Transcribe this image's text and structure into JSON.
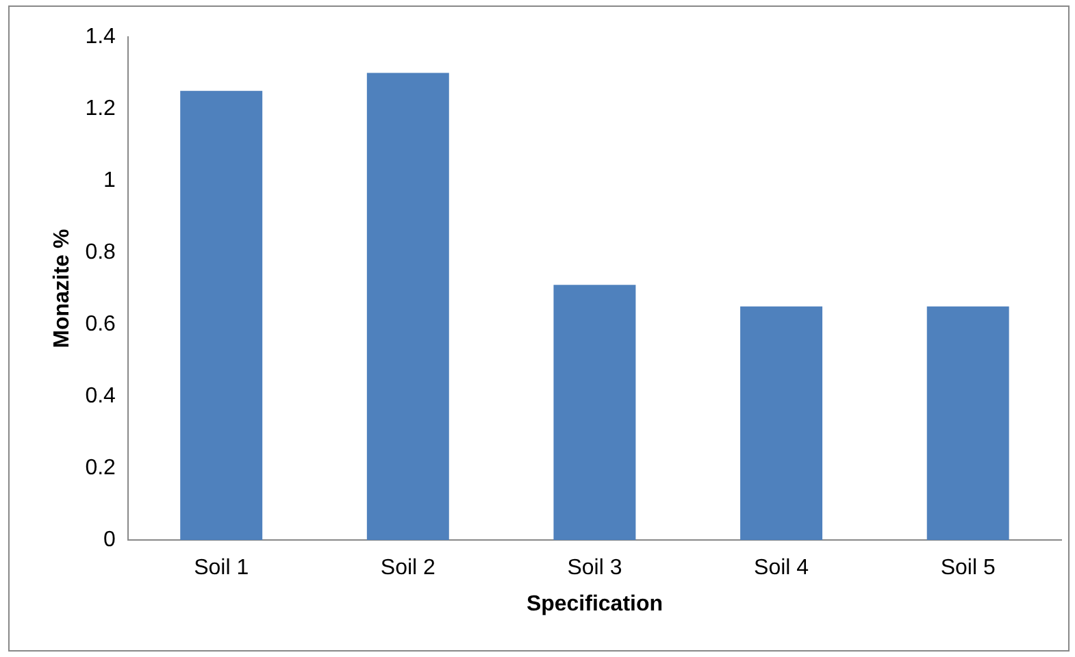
{
  "chart_data": {
    "type": "bar",
    "xlabel": "Specification",
    "ylabel": "Monazite %",
    "categories": [
      "Soil 1",
      "Soil 2",
      "Soil 3",
      "Soil 4",
      "Soil 5"
    ],
    "values": [
      1.25,
      1.3,
      0.71,
      0.65,
      0.65
    ],
    "color": "#4f81bd",
    "ylim": [
      0,
      1.4
    ],
    "yticks": [
      0,
      0.2,
      0.4,
      0.6,
      0.8,
      1,
      1.2,
      1.4
    ],
    "grid": false,
    "legend": false
  }
}
